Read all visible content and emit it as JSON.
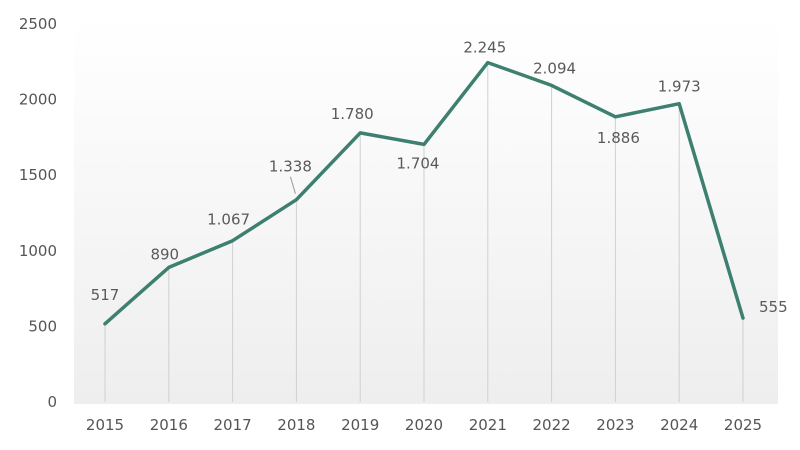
{
  "chart_data": {
    "type": "line",
    "title": "",
    "xlabel": "",
    "ylabel": "",
    "ylim": [
      0,
      2500
    ],
    "y_ticks": [
      "0",
      "500",
      "1000",
      "1500",
      "2000",
      "2500"
    ],
    "categories": [
      "2015",
      "2016",
      "2017",
      "2018",
      "2019",
      "2020",
      "2021",
      "2022",
      "2023",
      "2024",
      "2025"
    ],
    "values": [
      517,
      890,
      1067,
      1338,
      1780,
      1704,
      2245,
      2094,
      1886,
      1973,
      555
    ],
    "data_labels": [
      "517",
      "890",
      "1.067",
      "1.338",
      "1.780",
      "1.704",
      "2.245",
      "2.094",
      "1.886",
      "1.973",
      "555"
    ],
    "grid": "vertical lines at each category",
    "legend": "none",
    "colors": {
      "line": "#3d8070",
      "plot_background_top": "#ffffff",
      "plot_background_bottom": "#eeeeee",
      "gridline": "#d0d0d0",
      "text": "#555555"
    }
  }
}
